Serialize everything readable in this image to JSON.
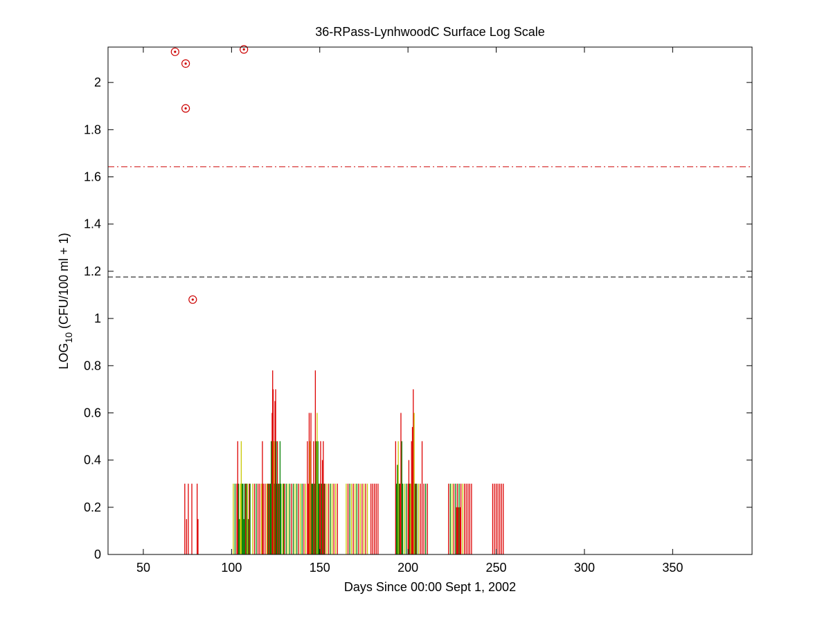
{
  "chart_data": {
    "type": "bar",
    "title": "36-RPass-LynhwoodC Surface Log Scale",
    "xlabel": "Days Since 00:00 Sept 1, 2002",
    "ylabel_main": "LOG",
    "ylabel_sub": "10",
    "ylabel_rest": " (CFU/100 ml + 1)",
    "xlim": [
      30,
      395
    ],
    "ylim": [
      0,
      2.15
    ],
    "xticks": [
      50,
      100,
      150,
      200,
      250,
      300,
      350
    ],
    "yticks": [
      0,
      0.2,
      0.4,
      0.6,
      0.8,
      1,
      1.2,
      1.4,
      1.6,
      1.8,
      2
    ],
    "ytick_labels": [
      "0",
      "0.2",
      "0.4",
      "0.6",
      "0.8",
      "1",
      "1.2",
      "1.4",
      "1.6",
      "1.8",
      "2"
    ],
    "grid": false,
    "reference_lines": [
      {
        "y": 1.643,
        "style": "dash-dot",
        "color": "#cc0000"
      },
      {
        "y": 1.176,
        "style": "dashed",
        "color": "#000000"
      }
    ],
    "bar_colors": {
      "red": "#dd0000",
      "yellow": "#c8c800",
      "green": "#008000"
    },
    "bars": [
      {
        "x": 73.5,
        "y": 0.3,
        "c": "red"
      },
      {
        "x": 74.5,
        "y": 0.15,
        "c": "red"
      },
      {
        "x": 75.5,
        "y": 0.3,
        "c": "red"
      },
      {
        "x": 77.5,
        "y": 0.3,
        "c": "red"
      },
      {
        "x": 80.5,
        "y": 0.3,
        "c": "red"
      },
      {
        "x": 81,
        "y": 0.15,
        "c": "red"
      },
      {
        "x": 101,
        "y": 0.3,
        "c": "yellow"
      },
      {
        "x": 102,
        "y": 0.3,
        "c": "green"
      },
      {
        "x": 103,
        "y": 0.3,
        "c": "red"
      },
      {
        "x": 103.5,
        "y": 0.48,
        "c": "red"
      },
      {
        "x": 104,
        "y": 0.3,
        "c": "green"
      },
      {
        "x": 104.5,
        "y": 0.15,
        "c": "green"
      },
      {
        "x": 105,
        "y": 0.3,
        "c": "yellow"
      },
      {
        "x": 105.5,
        "y": 0.48,
        "c": "yellow"
      },
      {
        "x": 106,
        "y": 0.3,
        "c": "green"
      },
      {
        "x": 106.5,
        "y": 0.3,
        "c": "green"
      },
      {
        "x": 107,
        "y": 0.15,
        "c": "green"
      },
      {
        "x": 107.5,
        "y": 0.3,
        "c": "green"
      },
      {
        "x": 108,
        "y": 0.3,
        "c": "red"
      },
      {
        "x": 108.5,
        "y": 0.3,
        "c": "green"
      },
      {
        "x": 109,
        "y": 0.3,
        "c": "yellow"
      },
      {
        "x": 109.5,
        "y": 0.15,
        "c": "green"
      },
      {
        "x": 110,
        "y": 0.3,
        "c": "red"
      },
      {
        "x": 110.5,
        "y": 0.3,
        "c": "green"
      },
      {
        "x": 112,
        "y": 0.3,
        "c": "yellow"
      },
      {
        "x": 113,
        "y": 0.3,
        "c": "red"
      },
      {
        "x": 114,
        "y": 0.3,
        "c": "green"
      },
      {
        "x": 115,
        "y": 0.3,
        "c": "red"
      },
      {
        "x": 116,
        "y": 0.3,
        "c": "red"
      },
      {
        "x": 117,
        "y": 0.3,
        "c": "yellow"
      },
      {
        "x": 117.5,
        "y": 0.48,
        "c": "red"
      },
      {
        "x": 118,
        "y": 0.3,
        "c": "red"
      },
      {
        "x": 119,
        "y": 0.3,
        "c": "red"
      },
      {
        "x": 120,
        "y": 0.3,
        "c": "yellow"
      },
      {
        "x": 120.5,
        "y": 0.3,
        "c": "red"
      },
      {
        "x": 121,
        "y": 0.3,
        "c": "green"
      },
      {
        "x": 121.5,
        "y": 0.3,
        "c": "red"
      },
      {
        "x": 122,
        "y": 0.3,
        "c": "green"
      },
      {
        "x": 122.5,
        "y": 0.48,
        "c": "green"
      },
      {
        "x": 123,
        "y": 0.6,
        "c": "red"
      },
      {
        "x": 123.3,
        "y": 0.78,
        "c": "red"
      },
      {
        "x": 123.6,
        "y": 0.7,
        "c": "red"
      },
      {
        "x": 124,
        "y": 0.48,
        "c": "yellow"
      },
      {
        "x": 124.3,
        "y": 0.3,
        "c": "green"
      },
      {
        "x": 124.6,
        "y": 0.65,
        "c": "red"
      },
      {
        "x": 125,
        "y": 0.7,
        "c": "red"
      },
      {
        "x": 125.3,
        "y": 0.48,
        "c": "green"
      },
      {
        "x": 125.6,
        "y": 0.3,
        "c": "green"
      },
      {
        "x": 126,
        "y": 0.48,
        "c": "red"
      },
      {
        "x": 126.5,
        "y": 0.3,
        "c": "green"
      },
      {
        "x": 127,
        "y": 0.3,
        "c": "red"
      },
      {
        "x": 127.5,
        "y": 0.48,
        "c": "green"
      },
      {
        "x": 128,
        "y": 0.3,
        "c": "green"
      },
      {
        "x": 129,
        "y": 0.3,
        "c": "yellow"
      },
      {
        "x": 129.5,
        "y": 0.3,
        "c": "green"
      },
      {
        "x": 130,
        "y": 0.3,
        "c": "red"
      },
      {
        "x": 131,
        "y": 0.3,
        "c": "green"
      },
      {
        "x": 132,
        "y": 0.3,
        "c": "yellow"
      },
      {
        "x": 133,
        "y": 0.3,
        "c": "green"
      },
      {
        "x": 134,
        "y": 0.3,
        "c": "red"
      },
      {
        "x": 135,
        "y": 0.3,
        "c": "green"
      },
      {
        "x": 136,
        "y": 0.3,
        "c": "yellow"
      },
      {
        "x": 137,
        "y": 0.3,
        "c": "green"
      },
      {
        "x": 138,
        "y": 0.3,
        "c": "red"
      },
      {
        "x": 139,
        "y": 0.3,
        "c": "yellow"
      },
      {
        "x": 140,
        "y": 0.3,
        "c": "green"
      },
      {
        "x": 141,
        "y": 0.3,
        "c": "red"
      },
      {
        "x": 142,
        "y": 0.3,
        "c": "yellow"
      },
      {
        "x": 143,
        "y": 0.48,
        "c": "red"
      },
      {
        "x": 143.5,
        "y": 0.3,
        "c": "red"
      },
      {
        "x": 144,
        "y": 0.6,
        "c": "red"
      },
      {
        "x": 144.5,
        "y": 0.48,
        "c": "yellow"
      },
      {
        "x": 145,
        "y": 0.6,
        "c": "red"
      },
      {
        "x": 145.5,
        "y": 0.3,
        "c": "green"
      },
      {
        "x": 146,
        "y": 0.3,
        "c": "green"
      },
      {
        "x": 146.5,
        "y": 0.48,
        "c": "red"
      },
      {
        "x": 147,
        "y": 0.3,
        "c": "green"
      },
      {
        "x": 147.5,
        "y": 0.78,
        "c": "red"
      },
      {
        "x": 148,
        "y": 0.48,
        "c": "green"
      },
      {
        "x": 148.5,
        "y": 0.6,
        "c": "yellow"
      },
      {
        "x": 149,
        "y": 0.48,
        "c": "green"
      },
      {
        "x": 149.5,
        "y": 0.3,
        "c": "green"
      },
      {
        "x": 150,
        "y": 0.3,
        "c": "red"
      },
      {
        "x": 150.5,
        "y": 0.48,
        "c": "red"
      },
      {
        "x": 151,
        "y": 0.3,
        "c": "green"
      },
      {
        "x": 151.5,
        "y": 0.4,
        "c": "red"
      },
      {
        "x": 152,
        "y": 0.48,
        "c": "red"
      },
      {
        "x": 152.5,
        "y": 0.3,
        "c": "green"
      },
      {
        "x": 153,
        "y": 0.3,
        "c": "red"
      },
      {
        "x": 154,
        "y": 0.3,
        "c": "yellow"
      },
      {
        "x": 155,
        "y": 0.3,
        "c": "red"
      },
      {
        "x": 156,
        "y": 0.3,
        "c": "green"
      },
      {
        "x": 157,
        "y": 0.3,
        "c": "yellow"
      },
      {
        "x": 158,
        "y": 0.3,
        "c": "red"
      },
      {
        "x": 159,
        "y": 0.3,
        "c": "yellow"
      },
      {
        "x": 160,
        "y": 0.3,
        "c": "red"
      },
      {
        "x": 165,
        "y": 0.3,
        "c": "yellow"
      },
      {
        "x": 166,
        "y": 0.3,
        "c": "red"
      },
      {
        "x": 167,
        "y": 0.3,
        "c": "green"
      },
      {
        "x": 168,
        "y": 0.3,
        "c": "yellow"
      },
      {
        "x": 169,
        "y": 0.3,
        "c": "red"
      },
      {
        "x": 170,
        "y": 0.3,
        "c": "yellow"
      },
      {
        "x": 171,
        "y": 0.3,
        "c": "green"
      },
      {
        "x": 172,
        "y": 0.3,
        "c": "red"
      },
      {
        "x": 173,
        "y": 0.3,
        "c": "yellow"
      },
      {
        "x": 174,
        "y": 0.3,
        "c": "red"
      },
      {
        "x": 175,
        "y": 0.3,
        "c": "yellow"
      },
      {
        "x": 176,
        "y": 0.3,
        "c": "red"
      },
      {
        "x": 177,
        "y": 0.3,
        "c": "yellow"
      },
      {
        "x": 179,
        "y": 0.3,
        "c": "red"
      },
      {
        "x": 180,
        "y": 0.3,
        "c": "red"
      },
      {
        "x": 181,
        "y": 0.3,
        "c": "red"
      },
      {
        "x": 182,
        "y": 0.3,
        "c": "red"
      },
      {
        "x": 183,
        "y": 0.3,
        "c": "red"
      },
      {
        "x": 193,
        "y": 0.48,
        "c": "red"
      },
      {
        "x": 193.5,
        "y": 0.3,
        "c": "green"
      },
      {
        "x": 194,
        "y": 0.38,
        "c": "green"
      },
      {
        "x": 194.5,
        "y": 0.48,
        "c": "yellow"
      },
      {
        "x": 195,
        "y": 0.3,
        "c": "green"
      },
      {
        "x": 195.5,
        "y": 0.3,
        "c": "red"
      },
      {
        "x": 196,
        "y": 0.6,
        "c": "red"
      },
      {
        "x": 196.5,
        "y": 0.48,
        "c": "green"
      },
      {
        "x": 197,
        "y": 0.3,
        "c": "green"
      },
      {
        "x": 198,
        "y": 0.3,
        "c": "yellow"
      },
      {
        "x": 199,
        "y": 0.3,
        "c": "green"
      },
      {
        "x": 200,
        "y": 0.3,
        "c": "red"
      },
      {
        "x": 200.5,
        "y": 0.4,
        "c": "red"
      },
      {
        "x": 201,
        "y": 0.3,
        "c": "green"
      },
      {
        "x": 201.5,
        "y": 0.3,
        "c": "yellow"
      },
      {
        "x": 202,
        "y": 0.48,
        "c": "red"
      },
      {
        "x": 202.5,
        "y": 0.54,
        "c": "red"
      },
      {
        "x": 203,
        "y": 0.7,
        "c": "red"
      },
      {
        "x": 203.5,
        "y": 0.6,
        "c": "yellow"
      },
      {
        "x": 204,
        "y": 0.3,
        "c": "green"
      },
      {
        "x": 204.5,
        "y": 0.3,
        "c": "red"
      },
      {
        "x": 205,
        "y": 0.3,
        "c": "green"
      },
      {
        "x": 206,
        "y": 0.3,
        "c": "yellow"
      },
      {
        "x": 207,
        "y": 0.3,
        "c": "red"
      },
      {
        "x": 208,
        "y": 0.48,
        "c": "red"
      },
      {
        "x": 209,
        "y": 0.3,
        "c": "red"
      },
      {
        "x": 210,
        "y": 0.3,
        "c": "green"
      },
      {
        "x": 211,
        "y": 0.3,
        "c": "red"
      },
      {
        "x": 223,
        "y": 0.3,
        "c": "red"
      },
      {
        "x": 224,
        "y": 0.3,
        "c": "green"
      },
      {
        "x": 225,
        "y": 0.3,
        "c": "yellow"
      },
      {
        "x": 226,
        "y": 0.3,
        "c": "red"
      },
      {
        "x": 227,
        "y": 0.3,
        "c": "green"
      },
      {
        "x": 227.5,
        "y": 0.2,
        "c": "red"
      },
      {
        "x": 228,
        "y": 0.3,
        "c": "red"
      },
      {
        "x": 228.5,
        "y": 0.2,
        "c": "red"
      },
      {
        "x": 229,
        "y": 0.3,
        "c": "green"
      },
      {
        "x": 229.5,
        "y": 0.2,
        "c": "red"
      },
      {
        "x": 230,
        "y": 0.3,
        "c": "red"
      },
      {
        "x": 231,
        "y": 0.3,
        "c": "yellow"
      },
      {
        "x": 232,
        "y": 0.3,
        "c": "red"
      },
      {
        "x": 233,
        "y": 0.3,
        "c": "red"
      },
      {
        "x": 234,
        "y": 0.3,
        "c": "red"
      },
      {
        "x": 235,
        "y": 0.3,
        "c": "red"
      },
      {
        "x": 236,
        "y": 0.3,
        "c": "red"
      },
      {
        "x": 248,
        "y": 0.3,
        "c": "red"
      },
      {
        "x": 249,
        "y": 0.3,
        "c": "red"
      },
      {
        "x": 250,
        "y": 0.3,
        "c": "red"
      },
      {
        "x": 251,
        "y": 0.3,
        "c": "red"
      },
      {
        "x": 252,
        "y": 0.3,
        "c": "red"
      },
      {
        "x": 253,
        "y": 0.3,
        "c": "red"
      },
      {
        "x": 254,
        "y": 0.3,
        "c": "red"
      }
    ],
    "markers": [
      {
        "x": 68,
        "y": 2.13
      },
      {
        "x": 74,
        "y": 2.08
      },
      {
        "x": 74,
        "y": 1.89
      },
      {
        "x": 78,
        "y": 1.08
      },
      {
        "x": 107,
        "y": 2.14
      }
    ],
    "marker_color": "#cc0000"
  }
}
